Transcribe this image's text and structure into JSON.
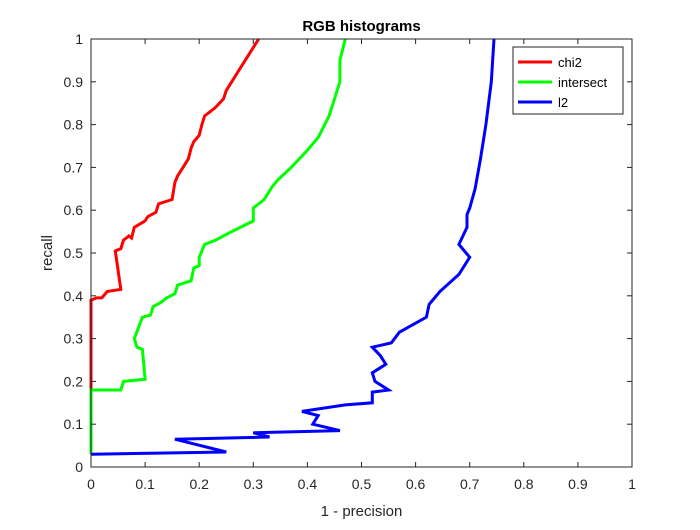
{
  "chart_data": {
    "type": "line",
    "title": "RGB histograms",
    "xlabel": "1 - precision",
    "ylabel": "recall",
    "xlim": [
      0,
      1
    ],
    "ylim": [
      0,
      1
    ],
    "xticks": [
      0,
      0.1,
      0.2,
      0.3,
      0.4,
      0.5,
      0.6,
      0.7,
      0.8,
      0.9,
      1
    ],
    "yticks": [
      0,
      0.1,
      0.2,
      0.3,
      0.4,
      0.5,
      0.6,
      0.7,
      0.8,
      0.9,
      1
    ],
    "xtick_labels": [
      "0",
      "0.1",
      "0.2",
      "0.3",
      "0.4",
      "0.5",
      "0.6",
      "0.7",
      "0.8",
      "0.9",
      "1"
    ],
    "ytick_labels": [
      "0",
      "0.1",
      "0.2",
      "0.3",
      "0.4",
      "0.5",
      "0.6",
      "0.7",
      "0.8",
      "0.9",
      "1"
    ],
    "grid": false,
    "legend_position": "top-right",
    "series": [
      {
        "name": "chi2",
        "color": "#ff0000",
        "points": [
          [
            0.0,
            0.03
          ],
          [
            0.0,
            0.39
          ],
          [
            0.01,
            0.395
          ],
          [
            0.02,
            0.395
          ],
          [
            0.03,
            0.41
          ],
          [
            0.055,
            0.415
          ],
          [
            0.045,
            0.505
          ],
          [
            0.055,
            0.51
          ],
          [
            0.06,
            0.53
          ],
          [
            0.07,
            0.54
          ],
          [
            0.075,
            0.535
          ],
          [
            0.08,
            0.56
          ],
          [
            0.1,
            0.575
          ],
          [
            0.105,
            0.585
          ],
          [
            0.12,
            0.595
          ],
          [
            0.125,
            0.615
          ],
          [
            0.15,
            0.625
          ],
          [
            0.155,
            0.665
          ],
          [
            0.16,
            0.68
          ],
          [
            0.165,
            0.69
          ],
          [
            0.17,
            0.7
          ],
          [
            0.175,
            0.71
          ],
          [
            0.18,
            0.72
          ],
          [
            0.185,
            0.745
          ],
          [
            0.19,
            0.76
          ],
          [
            0.2,
            0.775
          ],
          [
            0.205,
            0.8
          ],
          [
            0.21,
            0.82
          ],
          [
            0.23,
            0.84
          ],
          [
            0.245,
            0.86
          ],
          [
            0.25,
            0.88
          ],
          [
            0.27,
            0.92
          ],
          [
            0.29,
            0.96
          ],
          [
            0.31,
            1.0
          ]
        ]
      },
      {
        "name": "intersect",
        "color": "#00ff00",
        "points": [
          [
            0.0,
            0.03
          ],
          [
            0.0,
            0.18
          ],
          [
            0.03,
            0.18
          ],
          [
            0.055,
            0.18
          ],
          [
            0.06,
            0.2
          ],
          [
            0.1,
            0.205
          ],
          [
            0.095,
            0.275
          ],
          [
            0.085,
            0.28
          ],
          [
            0.08,
            0.3
          ],
          [
            0.095,
            0.35
          ],
          [
            0.11,
            0.355
          ],
          [
            0.115,
            0.375
          ],
          [
            0.13,
            0.385
          ],
          [
            0.14,
            0.395
          ],
          [
            0.155,
            0.405
          ],
          [
            0.16,
            0.425
          ],
          [
            0.185,
            0.435
          ],
          [
            0.19,
            0.465
          ],
          [
            0.2,
            0.47
          ],
          [
            0.2,
            0.49
          ],
          [
            0.21,
            0.52
          ],
          [
            0.23,
            0.53
          ],
          [
            0.26,
            0.55
          ],
          [
            0.3,
            0.575
          ],
          [
            0.3,
            0.605
          ],
          [
            0.32,
            0.625
          ],
          [
            0.335,
            0.655
          ],
          [
            0.345,
            0.67
          ],
          [
            0.37,
            0.7
          ],
          [
            0.4,
            0.74
          ],
          [
            0.42,
            0.77
          ],
          [
            0.44,
            0.82
          ],
          [
            0.45,
            0.86
          ],
          [
            0.46,
            0.9
          ],
          [
            0.46,
            0.95
          ],
          [
            0.47,
            1.0
          ]
        ]
      },
      {
        "name": "l2",
        "color": "#0000ff",
        "points": [
          [
            0.0,
            0.03
          ],
          [
            0.25,
            0.035
          ],
          [
            0.155,
            0.065
          ],
          [
            0.33,
            0.07
          ],
          [
            0.3,
            0.08
          ],
          [
            0.46,
            0.085
          ],
          [
            0.41,
            0.1
          ],
          [
            0.42,
            0.12
          ],
          [
            0.39,
            0.13
          ],
          [
            0.47,
            0.145
          ],
          [
            0.52,
            0.15
          ],
          [
            0.52,
            0.175
          ],
          [
            0.55,
            0.18
          ],
          [
            0.525,
            0.2
          ],
          [
            0.52,
            0.22
          ],
          [
            0.545,
            0.24
          ],
          [
            0.535,
            0.26
          ],
          [
            0.52,
            0.28
          ],
          [
            0.555,
            0.29
          ],
          [
            0.57,
            0.315
          ],
          [
            0.62,
            0.35
          ],
          [
            0.625,
            0.38
          ],
          [
            0.645,
            0.41
          ],
          [
            0.68,
            0.45
          ],
          [
            0.7,
            0.49
          ],
          [
            0.68,
            0.52
          ],
          [
            0.695,
            0.56
          ],
          [
            0.695,
            0.59
          ],
          [
            0.7,
            0.605
          ],
          [
            0.71,
            0.65
          ],
          [
            0.72,
            0.72
          ],
          [
            0.73,
            0.8
          ],
          [
            0.74,
            0.9
          ],
          [
            0.745,
            1.0
          ]
        ]
      }
    ]
  }
}
